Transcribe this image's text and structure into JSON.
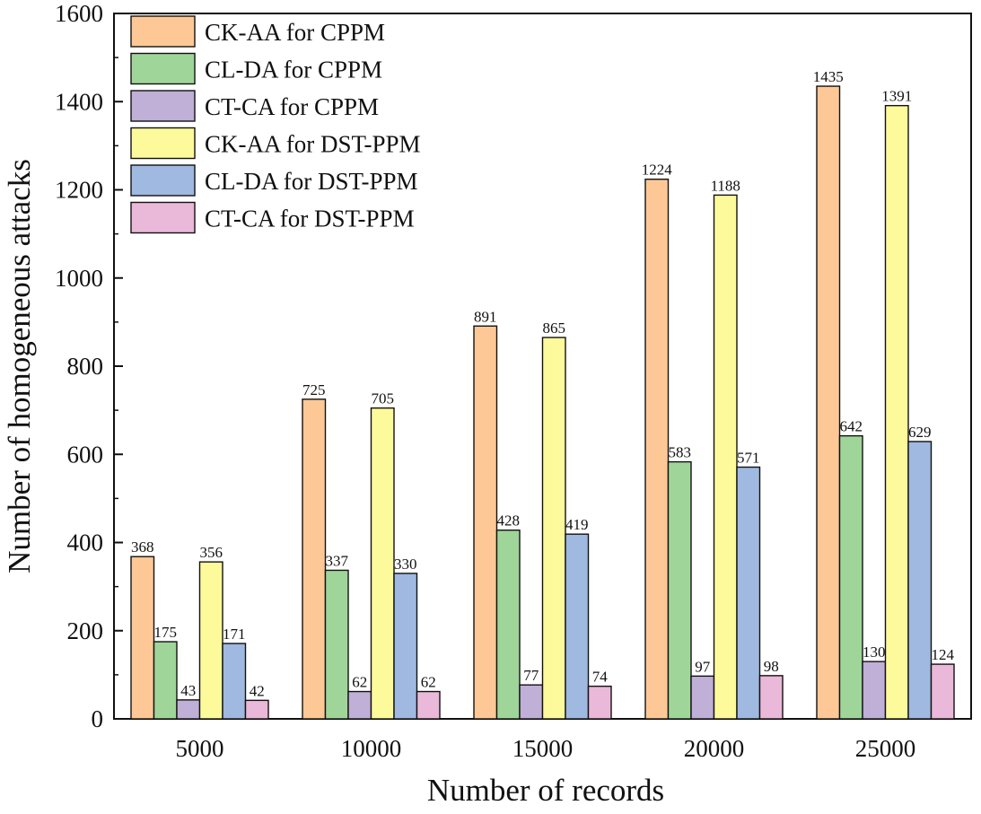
{
  "chart_data": {
    "type": "bar",
    "title": "",
    "xlabel": "Number of records",
    "ylabel": "Number of homogeneous attacks",
    "ylim": [
      0,
      1600
    ],
    "yticks": [
      0,
      200,
      400,
      600,
      800,
      1000,
      1200,
      1400,
      1600
    ],
    "grid": false,
    "legend_position": "top-left",
    "categories": [
      "5000",
      "10000",
      "15000",
      "20000",
      "25000"
    ],
    "series": [
      {
        "name": "CK-AA for CPPM",
        "color": "#FDC896",
        "values": [
          368,
          725,
          891,
          1224,
          1435
        ]
      },
      {
        "name": "CL-DA for CPPM",
        "color": "#A0D59A",
        "values": [
          175,
          337,
          428,
          583,
          642
        ]
      },
      {
        "name": "CT-CA for CPPM",
        "color": "#C0AFD6",
        "values": [
          43,
          62,
          77,
          97,
          130
        ]
      },
      {
        "name": "CK-AA for DST-PPM",
        "color": "#FDFA9C",
        "values": [
          356,
          705,
          865,
          1188,
          1391
        ]
      },
      {
        "name": "CL-DA for DST-PPM",
        "color": "#9FB9E0",
        "values": [
          171,
          330,
          419,
          571,
          629
        ]
      },
      {
        "name": "CT-CA for DST-PPM",
        "color": "#EAB8D8",
        "values": [
          42,
          62,
          74,
          98,
          124
        ]
      }
    ]
  }
}
